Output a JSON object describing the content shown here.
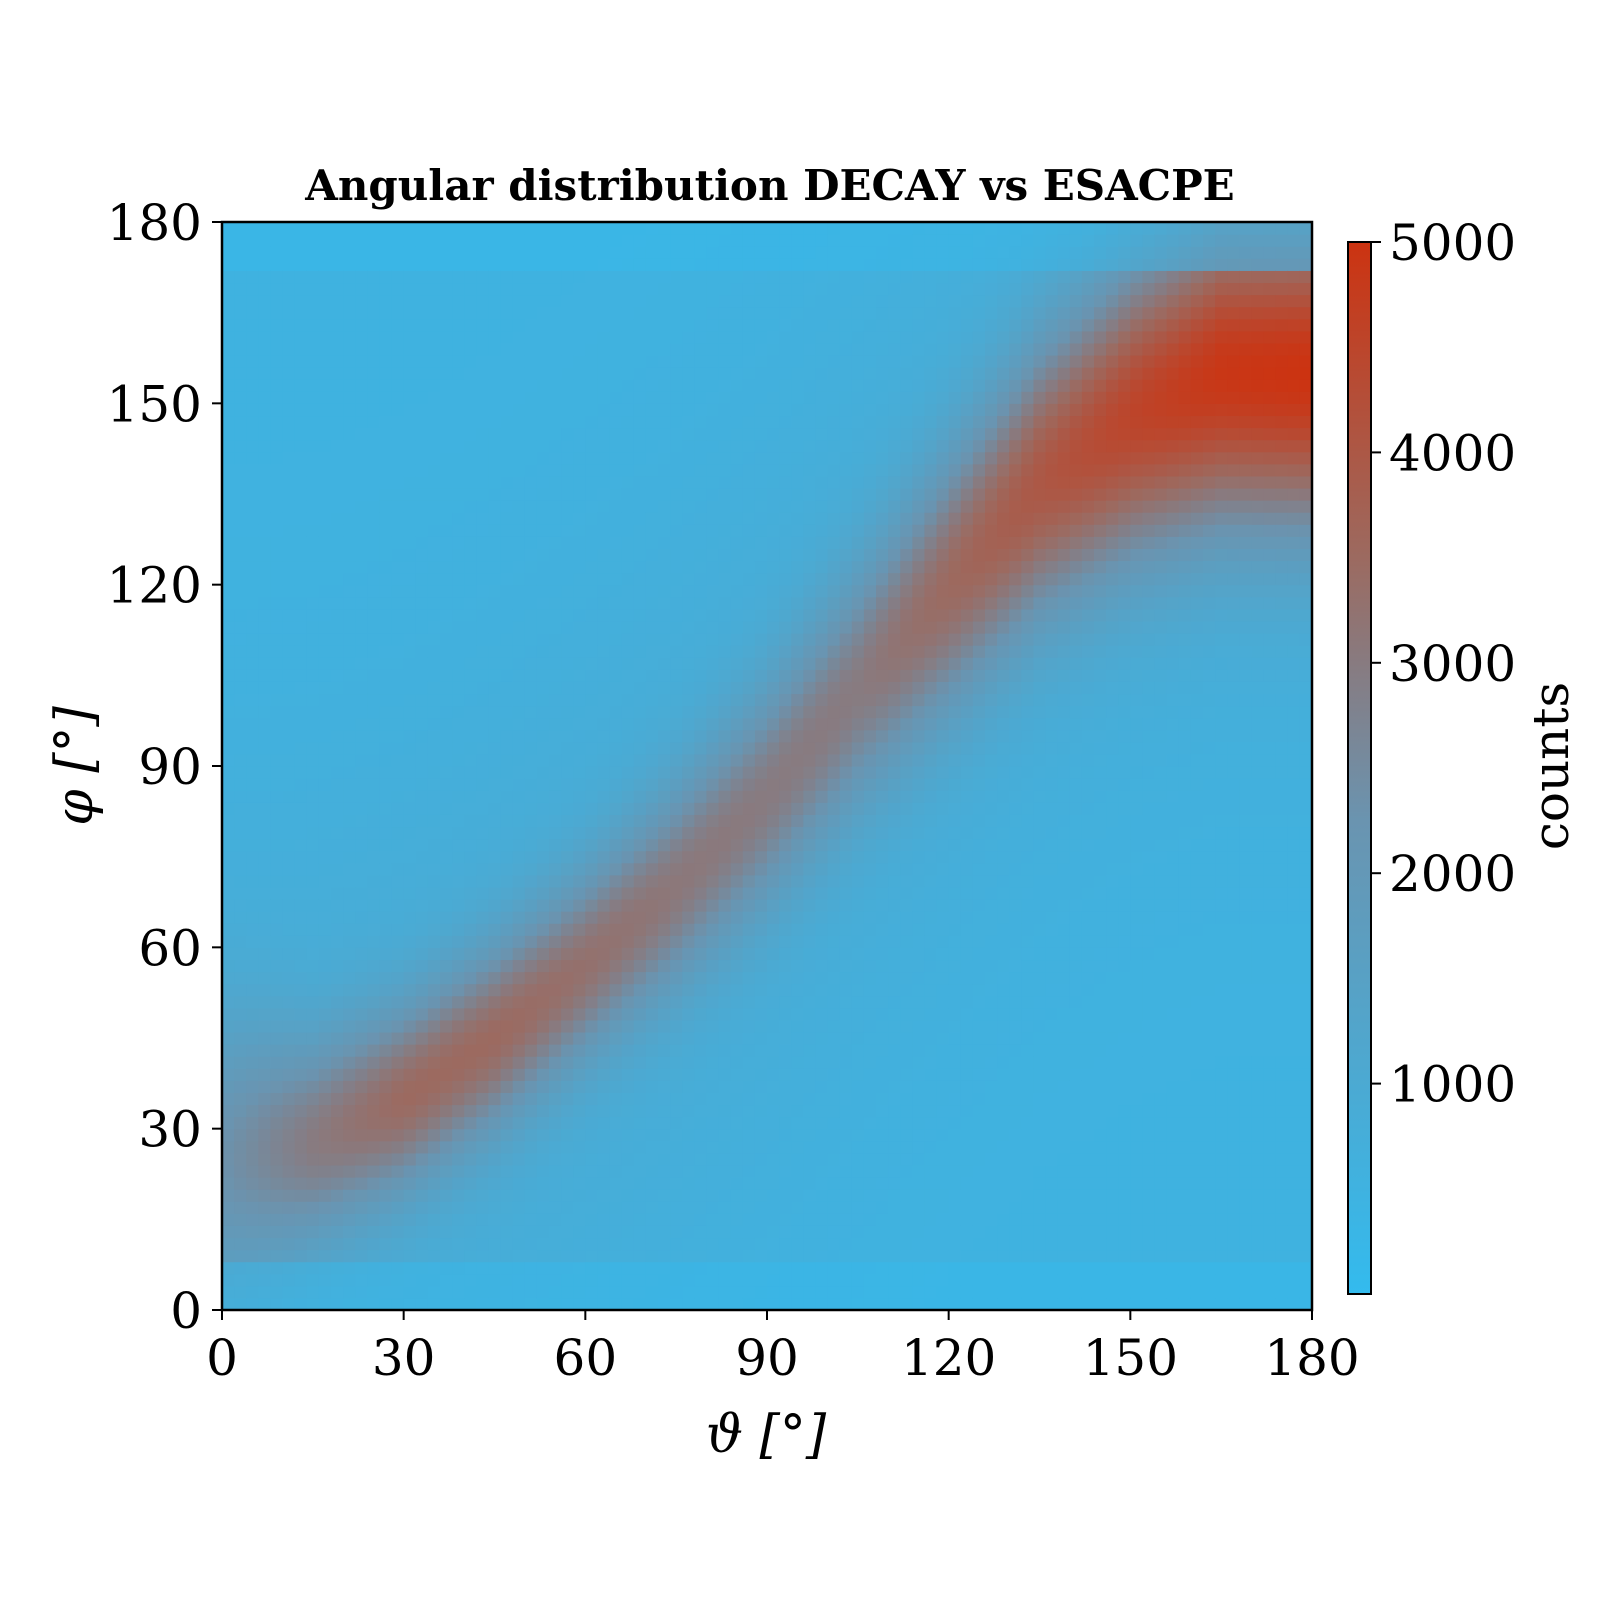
{
  "chart_data": {
    "type": "heatmap",
    "title": "Angular distribution DECAY vs ESACPE",
    "xlabel": "ϑ [°]",
    "ylabel": "φ [°]",
    "xlim": [
      0,
      180
    ],
    "ylim": [
      0,
      180
    ],
    "xticks": [
      "0",
      "30",
      "60",
      "90",
      "120",
      "150",
      "180"
    ],
    "yticks": [
      "0",
      "30",
      "60",
      "90",
      "120",
      "150",
      "180"
    ],
    "colorbar": {
      "label": "counts",
      "range": [
        0,
        5000
      ],
      "ticks": [
        "1000",
        "2000",
        "3000",
        "4000",
        "5000"
      ],
      "tick_values": [
        1000,
        2000,
        3000,
        4000,
        5000
      ],
      "color_low": "#33bbee",
      "color_high": "#cc3311"
    },
    "bins": {
      "x": 90,
      "y": 90
    },
    "ridge": {
      "theta": [
        0,
        15,
        30,
        45,
        60,
        75,
        90,
        105,
        120,
        135,
        150,
        165,
        180
      ],
      "phi_peak": [
        25,
        28,
        35,
        45,
        57,
        70,
        85,
        103,
        120,
        137,
        148,
        155,
        155
      ],
      "peak_counts": [
        2300,
        3000,
        3500,
        3500,
        3300,
        3100,
        3000,
        3000,
        3500,
        4000,
        4500,
        4900,
        5000
      ],
      "width_deg": [
        16,
        12,
        11,
        11,
        11,
        12,
        13,
        14,
        15,
        16,
        17,
        18,
        18
      ]
    },
    "background_counts": 900
  }
}
